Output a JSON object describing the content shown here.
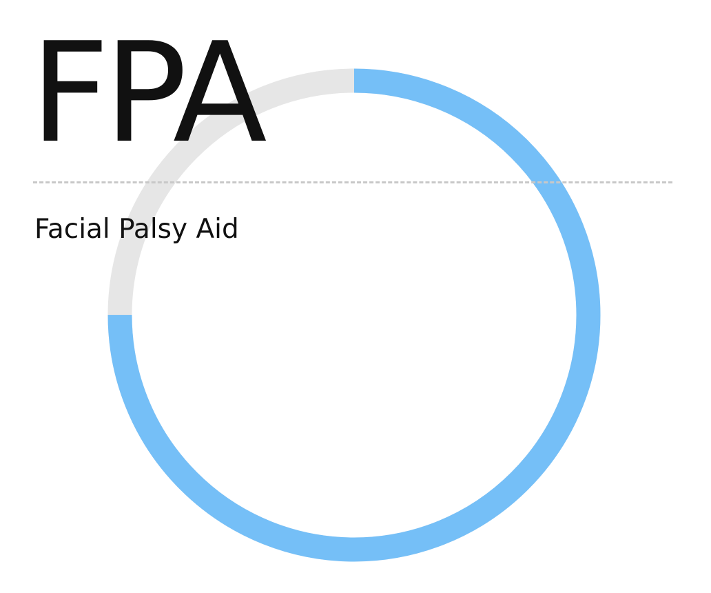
{
  "header": {
    "abbreviation": "FPA",
    "app_name": "Facial Palsy Aid"
  },
  "progress": {
    "fraction": 0.75,
    "track_color": "#e6e6e6",
    "fill_color": "#75bff7"
  },
  "colors": {
    "text": "#111111",
    "divider": "#c8c8c8",
    "background": "#ffffff"
  }
}
